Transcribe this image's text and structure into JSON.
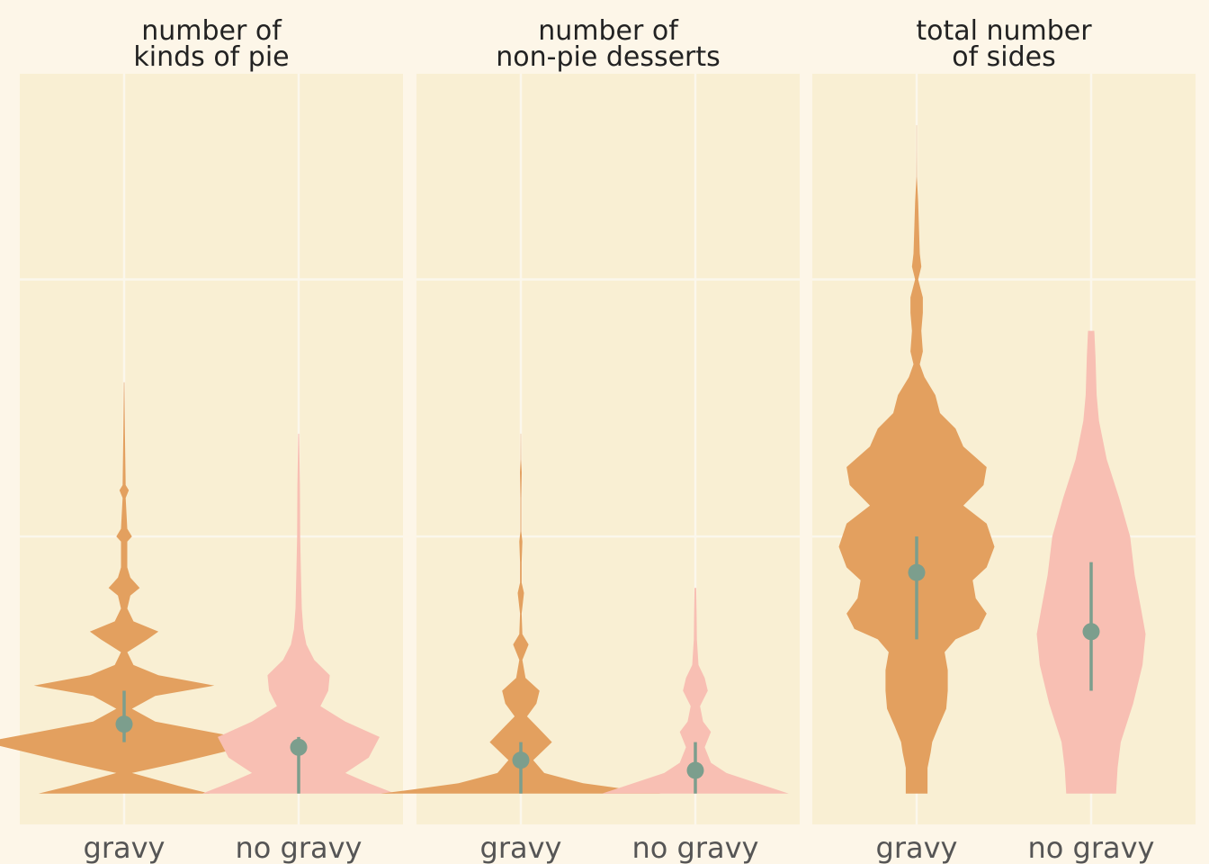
{
  "colors": {
    "background": "#fdf6e8",
    "panel": "#f9efd3",
    "grid": "#fbf7ec",
    "gravy": "#e3a05f",
    "no_gravy": "#f8bfb3",
    "marker": "#7c9e8d"
  },
  "chart_data": [
    {
      "type": "violin",
      "title_lines": [
        "number of",
        "kinds of pie"
      ],
      "categories": [
        "gravy",
        "no gravy"
      ],
      "ylim": [
        -0.12,
        2.8
      ],
      "yticks": [
        1,
        2
      ],
      "grid": true,
      "series": [
        {
          "category": "gravy",
          "profile": [
            [
              0,
              0.55
            ],
            [
              0.03,
              0.35
            ],
            [
              0.08,
              0.05
            ],
            [
              0.12,
              0.35
            ],
            [
              0.2,
              0.9
            ],
            [
              0.24,
              0.55
            ],
            [
              0.28,
              0.2
            ],
            [
              0.33,
              0.05
            ],
            [
              0.38,
              0.2
            ],
            [
              0.42,
              0.58
            ],
            [
              0.46,
              0.22
            ],
            [
              0.5,
              0.06
            ],
            [
              0.55,
              0.02
            ],
            [
              0.6,
              0.15
            ],
            [
              0.63,
              0.22
            ],
            [
              0.67,
              0.06
            ],
            [
              0.72,
              0.02
            ],
            [
              0.77,
              0.04
            ],
            [
              0.8,
              0.1
            ],
            [
              0.84,
              0.04
            ],
            [
              0.88,
              0.02
            ],
            [
              0.98,
              0.02
            ],
            [
              1.0,
              0.05
            ],
            [
              1.03,
              0.02
            ],
            [
              1.15,
              0.01
            ],
            [
              1.18,
              0.03
            ],
            [
              1.2,
              0.01
            ],
            [
              1.4,
              0.005
            ],
            [
              1.6,
              0.002
            ]
          ],
          "mean": 0.27,
          "ci": [
            0.2,
            0.4
          ]
        },
        {
          "category": "no gravy",
          "profile": [
            [
              0,
              0.62
            ],
            [
              0.04,
              0.45
            ],
            [
              0.08,
              0.3
            ],
            [
              0.14,
              0.45
            ],
            [
              0.22,
              0.52
            ],
            [
              0.28,
              0.3
            ],
            [
              0.34,
              0.14
            ],
            [
              0.4,
              0.19
            ],
            [
              0.46,
              0.2
            ],
            [
              0.52,
              0.1
            ],
            [
              0.58,
              0.05
            ],
            [
              0.64,
              0.03
            ],
            [
              0.72,
              0.02
            ],
            [
              0.85,
              0.015
            ],
            [
              1.0,
              0.01
            ],
            [
              1.2,
              0.008
            ],
            [
              1.4,
              0.003
            ]
          ],
          "mean": 0.18,
          "ci": [
            0,
            0.22
          ]
        }
      ]
    },
    {
      "type": "violin",
      "title_lines": [
        "number of",
        "non-pie desserts"
      ],
      "categories": [
        "gravy",
        "no gravy"
      ],
      "ylim": [
        -0.12,
        2.8
      ],
      "yticks": [
        1,
        2
      ],
      "grid": true,
      "series": [
        {
          "category": "gravy",
          "profile": [
            [
              0,
              0.9
            ],
            [
              0.015,
              0.7
            ],
            [
              0.04,
              0.4
            ],
            [
              0.08,
              0.15
            ],
            [
              0.13,
              0.08
            ],
            [
              0.2,
              0.2
            ],
            [
              0.25,
              0.12
            ],
            [
              0.3,
              0.04
            ],
            [
              0.35,
              0.1
            ],
            [
              0.4,
              0.12
            ],
            [
              0.45,
              0.03
            ],
            [
              0.52,
              0.01
            ],
            [
              0.58,
              0.05
            ],
            [
              0.62,
              0.01
            ],
            [
              0.7,
              0.005
            ],
            [
              0.78,
              0.02
            ],
            [
              0.82,
              0.005
            ],
            [
              0.9,
              0.005
            ],
            [
              0.98,
              0.01
            ],
            [
              1.02,
              0.003
            ],
            [
              1.15,
              0.003
            ],
            [
              1.25,
              0.006
            ],
            [
              1.3,
              0.002
            ],
            [
              1.4,
              0.001
            ]
          ],
          "mean": 0.13,
          "ci": [
            0,
            0.2
          ]
        },
        {
          "category": "no gravy",
          "profile": [
            [
              0,
              0.6
            ],
            [
              0.03,
              0.45
            ],
            [
              0.08,
              0.2
            ],
            [
              0.12,
              0.1
            ],
            [
              0.18,
              0.06
            ],
            [
              0.24,
              0.1
            ],
            [
              0.28,
              0.05
            ],
            [
              0.34,
              0.03
            ],
            [
              0.4,
              0.08
            ],
            [
              0.45,
              0.06
            ],
            [
              0.5,
              0.02
            ],
            [
              0.6,
              0.01
            ],
            [
              0.7,
              0.008
            ],
            [
              0.8,
              0.005
            ]
          ],
          "mean": 0.09,
          "ci": [
            0,
            0.2
          ]
        }
      ]
    },
    {
      "type": "violin",
      "title_lines": [
        "total number",
        "of sides"
      ],
      "categories": [
        "gravy",
        "no gravy"
      ],
      "ylim": [
        -0.12,
        2.8
      ],
      "yticks": [
        1,
        2
      ],
      "grid": true,
      "series": [
        {
          "category": "gravy",
          "profile": [
            [
              0,
              0.07
            ],
            [
              0.1,
              0.07
            ],
            [
              0.16,
              0.09
            ],
            [
              0.2,
              0.1
            ],
            [
              0.26,
              0.14
            ],
            [
              0.33,
              0.19
            ],
            [
              0.4,
              0.2
            ],
            [
              0.48,
              0.2
            ],
            [
              0.55,
              0.18
            ],
            [
              0.6,
              0.25
            ],
            [
              0.64,
              0.4
            ],
            [
              0.7,
              0.45
            ],
            [
              0.76,
              0.38
            ],
            [
              0.83,
              0.36
            ],
            [
              0.88,
              0.45
            ],
            [
              0.96,
              0.5
            ],
            [
              1.05,
              0.45
            ],
            [
              1.12,
              0.3
            ],
            [
              1.2,
              0.43
            ],
            [
              1.27,
              0.45
            ],
            [
              1.35,
              0.3
            ],
            [
              1.42,
              0.25
            ],
            [
              1.48,
              0.15
            ],
            [
              1.55,
              0.12
            ],
            [
              1.62,
              0.05
            ],
            [
              1.67,
              0.02
            ],
            [
              1.72,
              0.04
            ],
            [
              1.8,
              0.03
            ],
            [
              1.87,
              0.04
            ],
            [
              1.93,
              0.04
            ],
            [
              2.0,
              0.01
            ],
            [
              2.05,
              0.03
            ],
            [
              2.1,
              0.02
            ],
            [
              2.2,
              0.015
            ],
            [
              2.3,
              0.01
            ],
            [
              2.4,
              0.002
            ],
            [
              2.5,
              0.001
            ],
            [
              2.6,
              0.001
            ]
          ],
          "mean": 0.86,
          "ci": [
            0.6,
            1.0
          ]
        },
        {
          "category": "no gravy",
          "profile": [
            [
              0,
              0.16
            ],
            [
              0.1,
              0.17
            ],
            [
              0.2,
              0.19
            ],
            [
              0.35,
              0.27
            ],
            [
              0.5,
              0.33
            ],
            [
              0.62,
              0.35
            ],
            [
              0.72,
              0.32
            ],
            [
              0.85,
              0.28
            ],
            [
              1.0,
              0.25
            ],
            [
              1.15,
              0.18
            ],
            [
              1.3,
              0.1
            ],
            [
              1.45,
              0.05
            ],
            [
              1.55,
              0.035
            ],
            [
              1.7,
              0.028
            ],
            [
              1.8,
              0.02
            ]
          ],
          "mean": 0.63,
          "ci": [
            0.4,
            0.9
          ]
        }
      ]
    }
  ]
}
